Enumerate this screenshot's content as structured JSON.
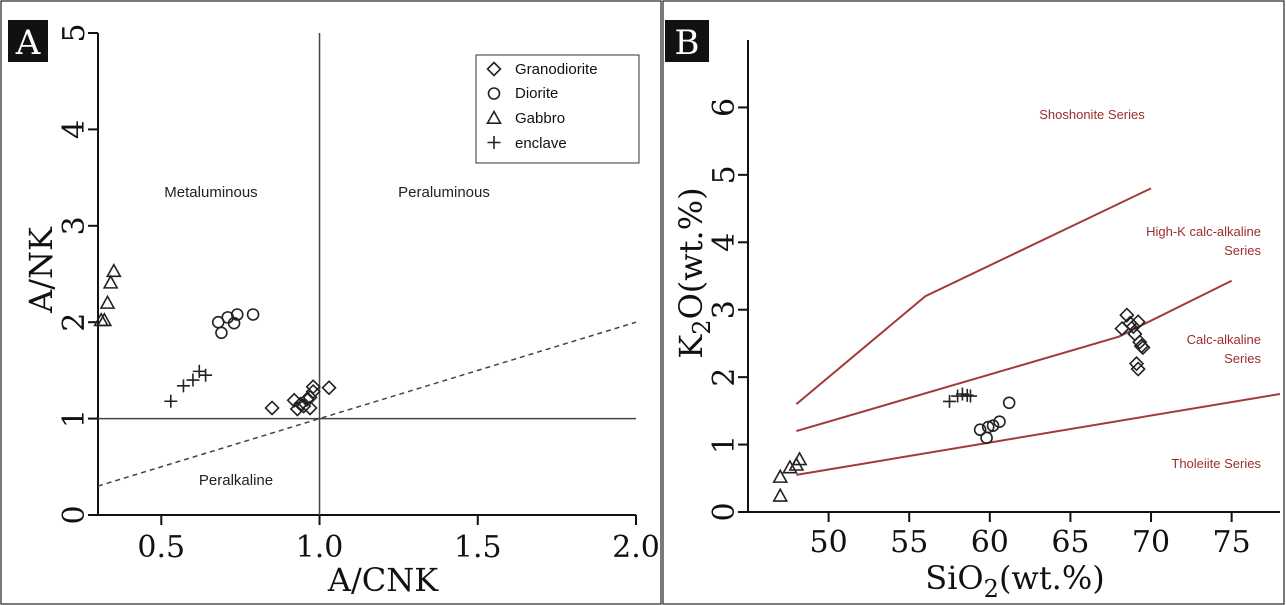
{
  "chart_data": [
    {
      "type": "scatter",
      "panel_label": "A",
      "xlabel": "A/CNK",
      "ylabel": "A/NK",
      "xlim": [
        0.3,
        2.0
      ],
      "ylim": [
        0,
        5
      ],
      "xticks": [
        "0.5",
        "1.0",
        "1.5",
        "2.0"
      ],
      "yticks": [
        "0",
        "1",
        "2",
        "3",
        "4",
        "5"
      ],
      "region_labels": [
        "Metaluminous",
        "Peraluminous",
        "Peralkaline"
      ],
      "legend": {
        "placement": "top-right",
        "entries": [
          "Granodiorite",
          "Diorite",
          "Gabbro",
          "enclave"
        ]
      },
      "series": [
        {
          "name": "Granodiorite",
          "marker": "diamond",
          "points": [
            [
              0.85,
              1.11
            ],
            [
              0.92,
              1.19
            ],
            [
              0.93,
              1.1
            ],
            [
              0.94,
              1.15
            ],
            [
              0.95,
              1.13
            ],
            [
              0.96,
              1.2
            ],
            [
              0.97,
              1.22
            ],
            [
              0.97,
              1.11
            ],
            [
              0.98,
              1.28
            ],
            [
              0.98,
              1.33
            ],
            [
              1.03,
              1.32
            ]
          ]
        },
        {
          "name": "Diorite",
          "marker": "circle",
          "points": [
            [
              0.68,
              2.0
            ],
            [
              0.69,
              1.89
            ],
            [
              0.71,
              2.05
            ],
            [
              0.73,
              1.99
            ],
            [
              0.74,
              2.08
            ],
            [
              0.79,
              2.08
            ]
          ]
        },
        {
          "name": "Gabbro",
          "marker": "triangle",
          "points": [
            [
              0.31,
              2.02
            ],
            [
              0.32,
              2.02
            ],
            [
              0.33,
              2.2
            ],
            [
              0.34,
              2.41
            ],
            [
              0.35,
              2.53
            ]
          ]
        },
        {
          "name": "enclave",
          "marker": "plus",
          "points": [
            [
              0.53,
              1.18
            ],
            [
              0.57,
              1.34
            ],
            [
              0.6,
              1.4
            ],
            [
              0.62,
              1.49
            ],
            [
              0.64,
              1.45
            ]
          ]
        }
      ],
      "guides": {
        "vertical_x": 1.0,
        "horizontal_y": 1.0,
        "dashed_line": [
          [
            0.3,
            0.3
          ],
          [
            2.0,
            2.0
          ]
        ]
      }
    },
    {
      "type": "scatter",
      "panel_label": "B",
      "xlabel": "SiO",
      "xlabel_sub": "2",
      "xlabel_suffix": "(wt.%)",
      "ylabel": "K",
      "ylabel_sub": "2",
      "ylabel_suffix": "O(wt.%)",
      "xlim": [
        45,
        78
      ],
      "ylim": [
        0,
        7
      ],
      "xticks": [
        "50",
        "55",
        "60",
        "65",
        "70",
        "75"
      ],
      "yticks": [
        "0",
        "1",
        "2",
        "3",
        "4",
        "5",
        "6"
      ],
      "series_labels": [
        "Shoshonite Series",
        "High-K calc-alkaline",
        "Series",
        "Calc-alkaline",
        "Series",
        "Tholeiite Series"
      ],
      "boundaries": [
        [
          [
            48,
            1.6
          ],
          [
            56,
            3.2
          ],
          [
            70,
            4.8
          ]
        ],
        [
          [
            48,
            1.2
          ],
          [
            68,
            2.6
          ],
          [
            75,
            3.43
          ]
        ],
        [
          [
            48,
            0.55
          ],
          [
            78,
            1.75
          ]
        ]
      ],
      "series": [
        {
          "name": "Granodiorite",
          "marker": "diamond",
          "points": [
            [
              68.2,
              2.72
            ],
            [
              68.5,
              2.92
            ],
            [
              68.7,
              2.8
            ],
            [
              68.9,
              2.75
            ],
            [
              69.0,
              2.64
            ],
            [
              69.2,
              2.82
            ],
            [
              69.3,
              2.52
            ],
            [
              69.4,
              2.46
            ],
            [
              69.5,
              2.44
            ],
            [
              69.1,
              2.2
            ],
            [
              69.2,
              2.12
            ]
          ]
        },
        {
          "name": "Diorite",
          "marker": "circle",
          "points": [
            [
              59.4,
              1.22
            ],
            [
              59.8,
              1.1
            ],
            [
              59.9,
              1.26
            ],
            [
              60.2,
              1.28
            ],
            [
              60.6,
              1.34
            ],
            [
              61.2,
              1.62
            ]
          ]
        },
        {
          "name": "Gabbro",
          "marker": "triangle",
          "points": [
            [
              47.0,
              0.52
            ],
            [
              47.0,
              0.24
            ],
            [
              47.6,
              0.66
            ],
            [
              48.0,
              0.7
            ],
            [
              48.2,
              0.78
            ]
          ]
        },
        {
          "name": "enclave",
          "marker": "plus",
          "points": [
            [
              57.5,
              1.64
            ],
            [
              58.0,
              1.72
            ],
            [
              58.3,
              1.75
            ],
            [
              58.6,
              1.73
            ],
            [
              58.8,
              1.72
            ]
          ]
        }
      ]
    }
  ]
}
